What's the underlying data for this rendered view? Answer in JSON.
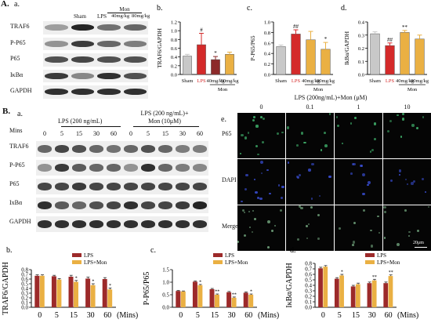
{
  "figure": {
    "panelA": {
      "label": "A.",
      "sub": "a.",
      "blot_rows": [
        "TRAF6",
        "P-P65",
        "P65",
        "IκBα",
        "GAPDH"
      ],
      "groups": [
        "Sham",
        "LPS",
        "40mg/kg",
        "80mg/kg"
      ],
      "mon_label": "Mon",
      "band_levels": [
        [
          0.35,
          0.9,
          0.55,
          0.6
        ],
        [
          0.4,
          0.8,
          0.6,
          0.5
        ],
        [
          0.7,
          0.75,
          0.7,
          0.7
        ],
        [
          0.8,
          0.45,
          0.85,
          0.7
        ],
        [
          0.85,
          0.85,
          0.85,
          0.85
        ]
      ]
    },
    "panelB": {
      "label": "B.",
      "sub": "a.",
      "lps_label": "LPS (200 ng/mL)",
      "lps_mon_label_1": "LPS (200 ng/mL)+",
      "lps_mon_label_2": "Mon (10μM)",
      "mins_label": "Mins",
      "times": [
        "0",
        "5",
        "15",
        "30",
        "60",
        "0",
        "5",
        "15",
        "30",
        "60"
      ],
      "blot_rows": [
        "TRAF6",
        "P-P65",
        "P65",
        "IxBα",
        "GAPDH"
      ],
      "band_levels": [
        [
          0.6,
          0.75,
          0.7,
          0.6,
          0.55,
          0.6,
          0.7,
          0.6,
          0.5,
          0.5
        ],
        [
          0.4,
          0.8,
          0.65,
          0.6,
          0.6,
          0.4,
          0.85,
          0.6,
          0.5,
          0.45
        ],
        [
          0.75,
          0.75,
          0.8,
          0.75,
          0.75,
          0.75,
          0.75,
          0.75,
          0.75,
          0.75
        ],
        [
          0.85,
          0.65,
          0.6,
          0.7,
          0.75,
          0.85,
          0.75,
          0.75,
          0.8,
          0.9
        ],
        [
          0.85,
          0.85,
          0.85,
          0.85,
          0.85,
          0.85,
          0.85,
          0.85,
          0.85,
          0.85
        ]
      ]
    },
    "panelE": {
      "label": "e.",
      "title": "LPS (200ng/mL)+Mon (μM)",
      "columns": [
        "0",
        "0.1",
        "1",
        "10"
      ],
      "rows": [
        "P65",
        "DAPI",
        "Merged"
      ],
      "scale_bar": "20μm"
    }
  },
  "chart_data": [
    {
      "id": "Ab",
      "type": "bar",
      "panel_label": "b.",
      "categories": [
        "Sham",
        "LPS",
        "40mg/kg",
        "80mg/kg"
      ],
      "values": [
        0.42,
        0.68,
        0.34,
        0.46
      ],
      "errors": [
        0.04,
        0.26,
        0.07,
        0.05
      ],
      "colors": [
        "#c8c8c8",
        "#d42a2a",
        "#8c2a2a",
        "#eab043"
      ],
      "sig": [
        "",
        "#",
        "*",
        ""
      ],
      "ylabel": "TRAF6/GAPDH",
      "ylim": [
        0,
        1.2
      ],
      "yticks": [
        "0.0",
        "0.2",
        "0.4",
        "0.6",
        "0.8",
        "1.0",
        "1.2"
      ],
      "group_label": "Mon"
    },
    {
      "id": "Ac",
      "type": "bar",
      "panel_label": "c.",
      "categories": [
        "Sham",
        "LPS",
        "40mg/kg",
        "80mg/kg"
      ],
      "values": [
        0.53,
        0.77,
        0.66,
        0.48
      ],
      "errors": [
        0.03,
        0.08,
        0.16,
        0.13
      ],
      "colors": [
        "#c8c8c8",
        "#d42a2a",
        "#eab043",
        "#eab043"
      ],
      "sig": [
        "",
        "##",
        "",
        "*"
      ],
      "ylabel": "P-P65/P65",
      "ylim": [
        0,
        1.0
      ],
      "yticks": [
        "0.0",
        "0.2",
        "0.4",
        "0.6",
        "0.8",
        "1.0"
      ],
      "group_label": "Mon"
    },
    {
      "id": "Ad",
      "type": "bar",
      "panel_label": "d.",
      "categories": [
        "Sham",
        "LPS",
        "40mg/kg",
        "80mg/kg"
      ],
      "values": [
        0.31,
        0.22,
        0.32,
        0.27
      ],
      "errors": [
        0.015,
        0.02,
        0.015,
        0.03
      ],
      "colors": [
        "#c8c8c8",
        "#d42a2a",
        "#eab043",
        "#eab043"
      ],
      "sig": [
        "",
        "##",
        "**",
        ""
      ],
      "ylabel": "IkBα/GAPDH",
      "ylim": [
        0,
        0.4
      ],
      "yticks": [
        "0.0",
        "0.1",
        "0.2",
        "0.3",
        "0.4"
      ],
      "group_label": "Mon"
    },
    {
      "id": "Bb",
      "type": "bar",
      "panel_label": "b.",
      "categories": [
        "0",
        "5",
        "15",
        "30",
        "60"
      ],
      "series": [
        {
          "name": "LPS",
          "color": "#9c2a2a",
          "values": [
            0.67,
            0.66,
            0.65,
            0.61,
            0.6
          ],
          "errors": [
            0.02,
            0.02,
            0.03,
            0.03,
            0.03
          ],
          "sig": [
            "",
            "",
            "",
            "",
            ""
          ]
        },
        {
          "name": "LPS+Mon",
          "color": "#eab043",
          "values": [
            0.67,
            0.59,
            0.54,
            0.47,
            0.38
          ],
          "errors": [
            0.02,
            0.02,
            0.03,
            0.03,
            0.03
          ],
          "sig": [
            "",
            "",
            "*",
            "*",
            "*"
          ]
        }
      ],
      "ylabel": "TRAF6/GAPDH",
      "xunit": "(Mins)",
      "ylim": [
        0,
        0.8
      ],
      "yticks": [
        "0.0",
        "0.1",
        "0.2",
        "0.3",
        "0.4",
        "0.5",
        "0.6",
        "0.7",
        "0.8"
      ]
    },
    {
      "id": "Bc",
      "type": "bar",
      "panel_label": "c.",
      "categories": [
        "0",
        "5",
        "15",
        "30",
        "60"
      ],
      "series": [
        {
          "name": "LPS",
          "color": "#9c2a2a",
          "values": [
            0.65,
            1.02,
            0.72,
            0.6,
            0.58
          ],
          "errors": [
            0.02,
            0.03,
            0.03,
            0.03,
            0.03
          ],
          "sig": [
            "",
            "",
            "",
            "",
            ""
          ]
        },
        {
          "name": "LPS+Mon",
          "color": "#eab043",
          "values": [
            0.63,
            0.88,
            0.5,
            0.38,
            0.5
          ],
          "errors": [
            0.02,
            0.03,
            0.03,
            0.03,
            0.03
          ],
          "sig": [
            "",
            "*",
            "**",
            "**",
            "*"
          ]
        }
      ],
      "ylabel": "P-P65/P65",
      "xunit": "(Mins)",
      "ylim": [
        0,
        1.5
      ],
      "yticks": [
        "0.0",
        "0.5",
        "1.0",
        "1.5"
      ]
    },
    {
      "id": "Bd",
      "type": "bar",
      "panel_label": "d.",
      "categories": [
        "0",
        "5",
        "15",
        "30",
        "60"
      ],
      "series": [
        {
          "name": "LPS",
          "color": "#9c2a2a",
          "values": [
            0.71,
            0.52,
            0.38,
            0.44,
            0.44
          ],
          "errors": [
            0.02,
            0.02,
            0.02,
            0.02,
            0.02
          ],
          "sig": [
            "",
            "",
            "",
            "",
            ""
          ]
        },
        {
          "name": "LPS+Mon",
          "color": "#eab043",
          "values": [
            0.74,
            0.58,
            0.42,
            0.49,
            0.57
          ],
          "errors": [
            0.02,
            0.02,
            0.02,
            0.02,
            0.02
          ],
          "sig": [
            "",
            "*",
            "",
            "**",
            "**"
          ]
        }
      ],
      "ylabel": "IκBα/GAPDH",
      "xunit": "(Mins)",
      "ylim": [
        0,
        0.8
      ],
      "yticks": [
        "0.0",
        "0.1",
        "0.2",
        "0.3",
        "0.4",
        "0.5",
        "0.6",
        "0.7",
        "0.8"
      ]
    }
  ]
}
